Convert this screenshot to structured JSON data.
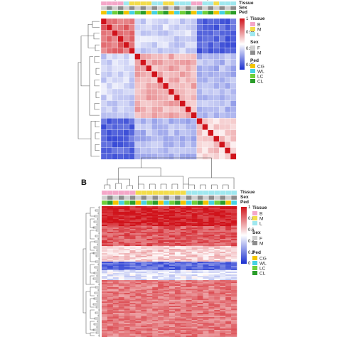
{
  "palette": {
    "tissue": {
      "B": "#f4a6c8",
      "M": "#f2dc4a",
      "L": "#9fe8ef"
    },
    "sex": {
      "F": "#cfcfcf",
      "M": "#8c8c8c"
    },
    "ped": {
      "CG": "#f2c500",
      "WL": "#45d2e3",
      "LC": "#6fcf3a",
      "CL": "#2a9d2a"
    },
    "heat_low": "#1a2fd0",
    "heat_mid": "#ffffff",
    "heat_high": "#d0131b"
  },
  "panel_a": {
    "label": "",
    "annotation_rows": [
      "Tissue",
      "Sex",
      "Ped"
    ],
    "legend": {
      "tissue_title": "Tissue",
      "tissue_items": [
        "B",
        "M",
        "L"
      ],
      "sex_title": "Sex",
      "sex_items": [
        "F",
        "M"
      ],
      "ped_title": "Ped",
      "ped_items": [
        "CG",
        "WL",
        "LC",
        "CL"
      ]
    },
    "colorbar_ticks": [
      "1",
      "0.95",
      "0.9",
      "0.85"
    ]
  },
  "panel_b": {
    "label": "B",
    "annotation_rows": [
      "Tissue",
      "Sex",
      "Ped"
    ],
    "legend": {
      "tissue_title": "Tissue",
      "tissue_items": [
        "B",
        "M",
        "L"
      ],
      "sex_title": "Sex",
      "sex_items": [
        "F",
        "M"
      ],
      "ped_title": "Ped",
      "ped_items": [
        "CG",
        "WL",
        "LC",
        "CL"
      ]
    },
    "colorbar_ticks": [
      "1",
      "0.8",
      "0.6",
      "0.4",
      "0.2",
      "0"
    ]
  },
  "chart_data": [
    {
      "type": "heatmap",
      "title": "",
      "description_value_range": [
        0.85,
        1
      ],
      "n_samples": 24,
      "col_tissue": [
        "B",
        "B",
        "B",
        "B",
        "L",
        "M",
        "M",
        "M",
        "M",
        "L",
        "L",
        "M",
        "M",
        "L",
        "L",
        "L",
        "B",
        "B",
        "L",
        "L",
        "M",
        "L",
        "L",
        "L"
      ],
      "col_sex": [
        "F",
        "M",
        "F",
        "M",
        "F",
        "M",
        "F",
        "M",
        "F",
        "M",
        "F",
        "M",
        "F",
        "M",
        "F",
        "M",
        "F",
        "M",
        "F",
        "M",
        "F",
        "M",
        "F",
        "M"
      ],
      "col_ped": [
        "CG",
        "WL",
        "LC",
        "CL",
        "CG",
        "WL",
        "LC",
        "CL",
        "CG",
        "WL",
        "LC",
        "CL",
        "CG",
        "WL",
        "LC",
        "CL",
        "CG",
        "WL",
        "LC",
        "CL",
        "CG",
        "WL",
        "LC",
        "CL"
      ],
      "row_cluster": [
        0,
        0,
        0,
        0,
        0,
        0,
        1,
        1,
        1,
        1,
        1,
        1,
        1,
        1,
        1,
        1,
        1,
        2,
        2,
        2,
        2,
        2,
        2,
        2
      ],
      "cluster_similarity": [
        [
          0.97,
          0.91,
          0.87
        ],
        [
          0.91,
          0.95,
          0.9
        ],
        [
          0.87,
          0.9,
          0.94
        ]
      ],
      "diagonal": 1,
      "color_scale": {
        "min": 0.85,
        "max": 1
      }
    },
    {
      "type": "heatmap",
      "title": "",
      "n_columns": 24,
      "col_tissue": [
        "B",
        "B",
        "B",
        "B",
        "B",
        "B",
        "M",
        "M",
        "M",
        "M",
        "M",
        "M",
        "M",
        "M",
        "M",
        "L",
        "L",
        "L",
        "L",
        "L",
        "L",
        "L",
        "L",
        "L"
      ],
      "col_sex": [
        "F",
        "M",
        "F",
        "M",
        "F",
        "M",
        "F",
        "M",
        "F",
        "M",
        "F",
        "M",
        "F",
        "M",
        "F",
        "M",
        "F",
        "M",
        "F",
        "M",
        "F",
        "M",
        "F",
        "M"
      ],
      "col_ped": [
        "LC",
        "CL",
        "CG",
        "WL",
        "LC",
        "CL",
        "CG",
        "WL",
        "LC",
        "CL",
        "CG",
        "WL",
        "LC",
        "CL",
        "CG",
        "WL",
        "LC",
        "CL",
        "CG",
        "WL",
        "LC",
        "CL",
        "CG",
        "WL"
      ],
      "row_profile": [
        {
          "from": 0.0,
          "to": 0.15,
          "value": 0.97
        },
        {
          "from": 0.15,
          "to": 0.3,
          "value": 0.85
        },
        {
          "from": 0.3,
          "to": 0.42,
          "value": 0.6
        },
        {
          "from": 0.42,
          "to": 0.48,
          "value": 0.15
        },
        {
          "from": 0.48,
          "to": 0.56,
          "value": 0.45
        },
        {
          "from": 0.56,
          "to": 1.0,
          "value": 0.78
        }
      ],
      "color_scale": {
        "min": 0,
        "max": 1
      }
    }
  ]
}
